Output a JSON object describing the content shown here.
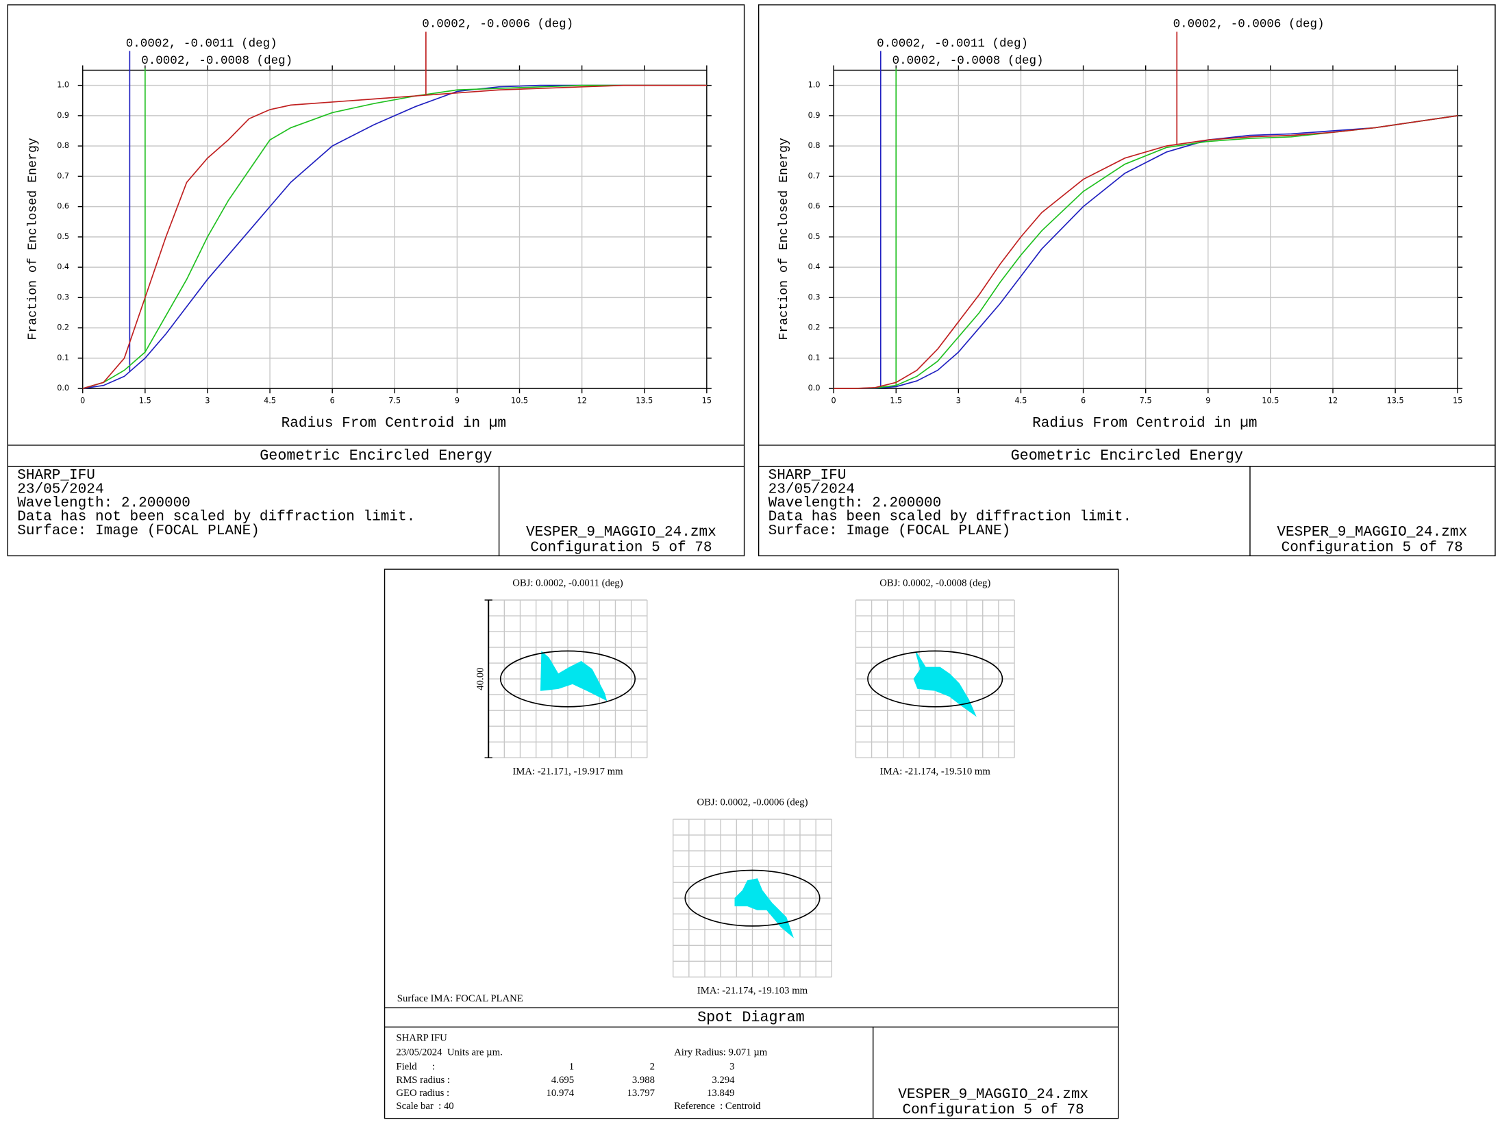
{
  "chart_data": [
    {
      "type": "line",
      "title": "Geometric Encircled Energy",
      "xlabel": "Radius From Centroid in µm",
      "ylabel": "Fraction of Enclosed Energy",
      "xlim": [
        0,
        15
      ],
      "ylim": [
        0,
        1.05
      ],
      "xticks": [
        0,
        1.5,
        3,
        4.5,
        6,
        7.5,
        9,
        10.5,
        12,
        13.5,
        15
      ],
      "yticks": [
        {
          "value": 0,
          "label": "0.0"
        },
        0.1,
        0.2,
        0.3,
        0.4,
        0.5,
        0.6,
        0.7,
        0.8,
        0.9,
        {
          "value": 1,
          "label": "1.0"
        }
      ],
      "grid": true,
      "x": [
        0,
        0.5,
        1,
        1.5,
        2,
        2.5,
        3,
        3.5,
        4,
        4.5,
        5,
        6,
        7,
        8,
        9,
        10,
        11,
        12,
        13,
        14,
        15
      ],
      "series": [
        {
          "name": "0.0002, -0.0011 (deg)",
          "color": "#2020c0",
          "marker_x": 1.13,
          "values": [
            0,
            0.01,
            0.04,
            0.1,
            0.18,
            0.27,
            0.36,
            0.44,
            0.52,
            0.6,
            0.68,
            0.8,
            0.87,
            0.93,
            0.98,
            0.995,
            1,
            1,
            1,
            1,
            1
          ]
        },
        {
          "name": "0.0002, -0.0008 (deg)",
          "color": "#20c020",
          "marker_x": 1.5,
          "values": [
            0,
            0.02,
            0.06,
            0.12,
            0.24,
            0.36,
            0.5,
            0.62,
            0.72,
            0.82,
            0.86,
            0.91,
            0.94,
            0.965,
            0.985,
            0.99,
            0.995,
            1,
            1,
            1,
            1
          ]
        },
        {
          "name": "0.0002, -0.0006 (deg)",
          "color": "#c02020",
          "marker_x": 8.25,
          "values": [
            0,
            0.02,
            0.1,
            0.3,
            0.5,
            0.68,
            0.76,
            0.82,
            0.89,
            0.92,
            0.935,
            0.945,
            0.955,
            0.965,
            0.975,
            0.985,
            0.99,
            0.995,
            1,
            1,
            1
          ]
        }
      ],
      "info": [
        "SHARP_IFU",
        "23/05/2024",
        "Wavelength: 2.200000",
        "Data has not been scaled by diffraction limit.",
        "Surface: Image (FOCAL PLANE)"
      ],
      "file": "VESPER_9_MAGGIO_24.zmx",
      "config": "Configuration 5 of 78"
    },
    {
      "type": "line",
      "title": "Geometric Encircled Energy",
      "xlabel": "Radius From Centroid in µm",
      "ylabel": "Fraction of Enclosed Energy",
      "xlim": [
        0,
        15
      ],
      "ylim": [
        0,
        1.05
      ],
      "xticks": [
        0,
        1.5,
        3,
        4.5,
        6,
        7.5,
        9,
        10.5,
        12,
        13.5,
        15
      ],
      "yticks": [
        {
          "value": 0,
          "label": "0.0"
        },
        0.1,
        0.2,
        0.3,
        0.4,
        0.5,
        0.6,
        0.7,
        0.8,
        0.9,
        {
          "value": 1,
          "label": "1.0"
        }
      ],
      "grid": true,
      "x": [
        0,
        0.5,
        1,
        1.5,
        2,
        2.5,
        3,
        3.5,
        4,
        4.5,
        5,
        6,
        7,
        8,
        9,
        10,
        11,
        12,
        13,
        14,
        15
      ],
      "series": [
        {
          "name": "0.0002, -0.0011 (deg)",
          "color": "#2020c0",
          "marker_x": 1.13,
          "values": [
            0,
            0,
            0.001,
            0.006,
            0.025,
            0.06,
            0.12,
            0.2,
            0.28,
            0.37,
            0.46,
            0.6,
            0.71,
            0.78,
            0.82,
            0.835,
            0.84,
            0.85,
            0.86,
            0.88,
            0.9
          ]
        },
        {
          "name": "0.0002, -0.0008 (deg)",
          "color": "#20c020",
          "marker_x": 1.5,
          "values": [
            0,
            0,
            0.002,
            0.01,
            0.04,
            0.09,
            0.17,
            0.25,
            0.35,
            0.44,
            0.52,
            0.65,
            0.74,
            0.795,
            0.815,
            0.825,
            0.83,
            0.845,
            0.86,
            0.88,
            0.9
          ]
        },
        {
          "name": "0.0002, -0.0006 (deg)",
          "color": "#c02020",
          "marker_x": 8.25,
          "values": [
            0,
            0,
            0.003,
            0.02,
            0.06,
            0.13,
            0.22,
            0.31,
            0.41,
            0.5,
            0.58,
            0.69,
            0.76,
            0.8,
            0.82,
            0.83,
            0.835,
            0.845,
            0.86,
            0.88,
            0.9
          ]
        }
      ],
      "info": [
        "SHARP_IFU",
        "23/05/2024",
        "Wavelength: 2.200000",
        "Data has been scaled by diffraction limit.",
        "Surface: Image (FOCAL PLANE)"
      ],
      "file": "VESPER_9_MAGGIO_24.zmx",
      "config": "Configuration 5 of 78"
    },
    {
      "type": "spot",
      "title": "Spot Diagram",
      "surface": "Surface IMA: FOCAL PLANE",
      "scale_label": "40.00",
      "color": "#00e5ee",
      "fields": [
        {
          "obj": "OBJ: 0.0002, -0.0011 (deg)",
          "ima": "IMA: -21.171, -19.917 mm"
        },
        {
          "obj": "OBJ: 0.0002, -0.0008 (deg)",
          "ima": "IMA: -21.174, -19.510 mm"
        },
        {
          "obj": "OBJ: 0.0002, -0.0006 (deg)",
          "ima": "IMA: -21.174, -19.103 mm"
        }
      ],
      "info": {
        "name": "SHARP IFU",
        "date_units": "23/05/2024  Units are µm.",
        "airy": "Airy Radius: 9.071 µm",
        "table": [
          [
            "Field      :",
            "1",
            "2",
            "3"
          ],
          [
            "RMS radius :",
            "4.695",
            "3.988",
            "3.294"
          ],
          [
            "GEO radius :",
            "10.974",
            "13.797",
            "13.849"
          ]
        ],
        "scale_bar": "Scale bar  : 40",
        "reference": "Reference  : Centroid"
      },
      "file": "VESPER_9_MAGGIO_24.zmx",
      "config": "Configuration 5 of 78"
    }
  ]
}
